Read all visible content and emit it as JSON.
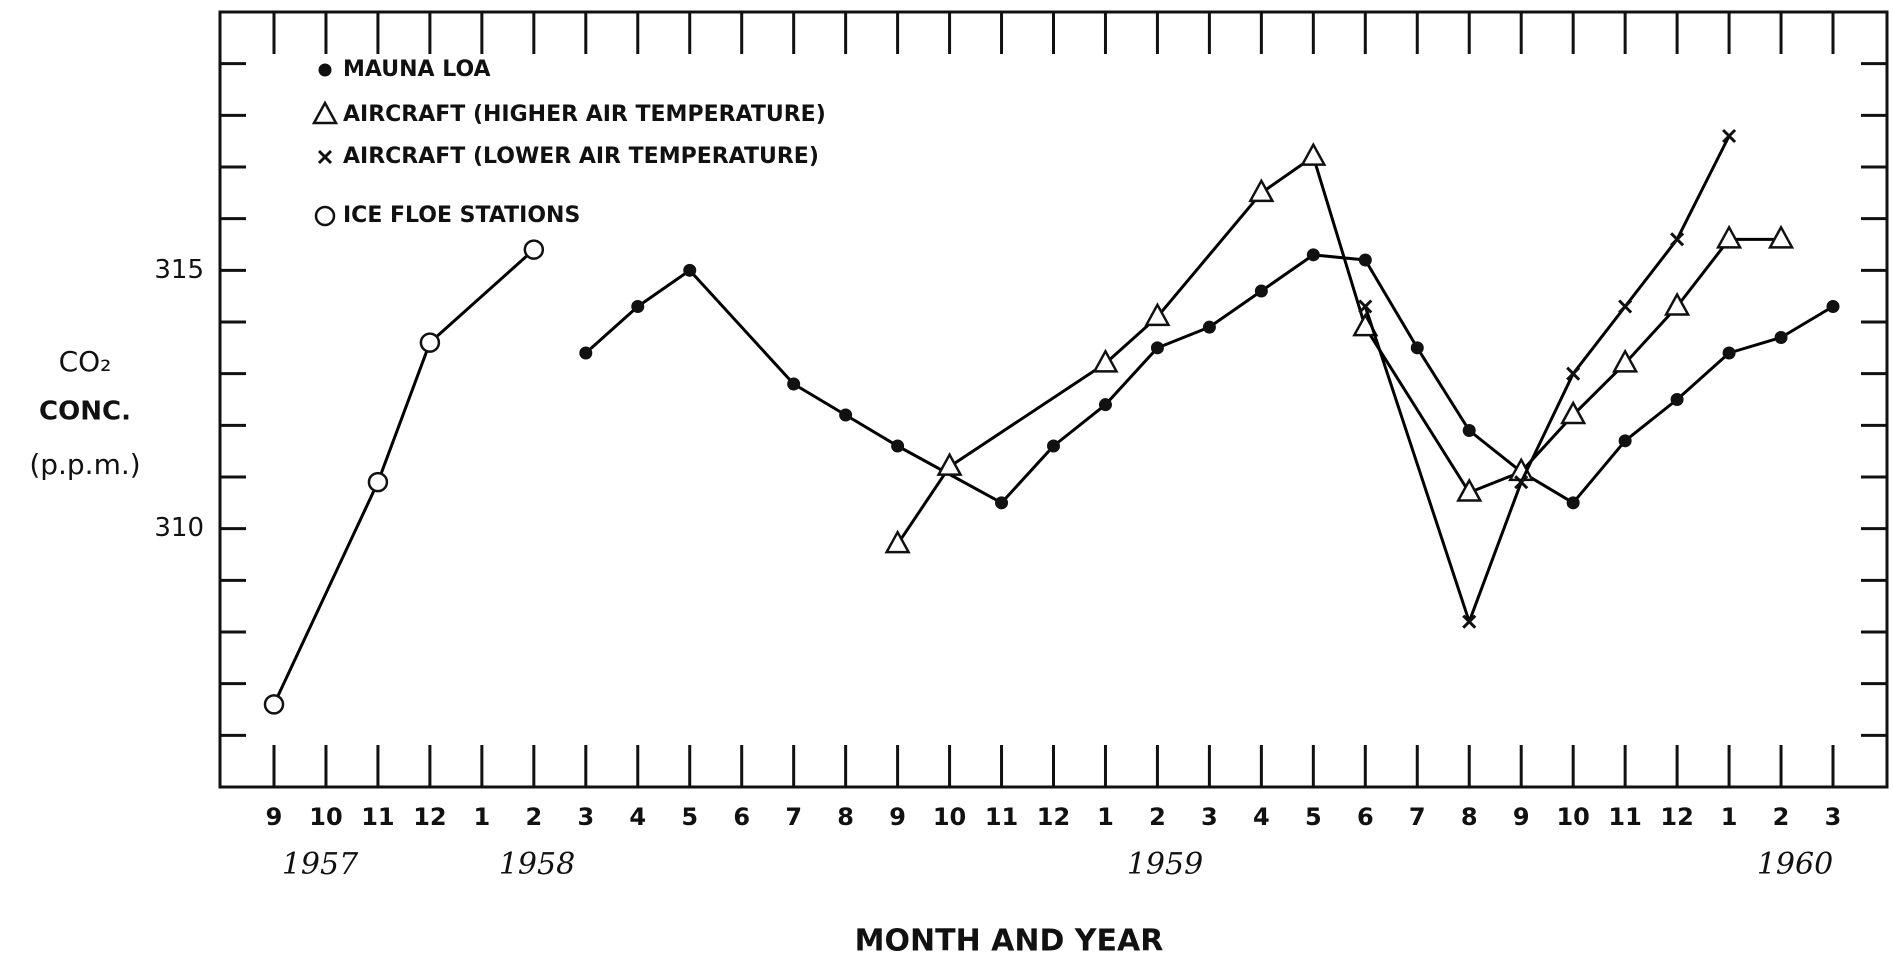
{
  "chart_data": {
    "type": "line",
    "x_label": "MONTH AND YEAR",
    "y_label": [
      "CO₂",
      "CONC.",
      "(p.p.m.)"
    ],
    "categories": [
      "9",
      "10",
      "11",
      "12",
      "1",
      "2",
      "3",
      "4",
      "5",
      "6",
      "7",
      "8",
      "9",
      "10",
      "11",
      "12",
      "1",
      "2",
      "3",
      "4",
      "5",
      "6",
      "7",
      "8",
      "9",
      "10",
      "11",
      "12",
      "1",
      "2",
      "3"
    ],
    "years": [
      "1957",
      "1958",
      "1959",
      "1960"
    ],
    "ylim": [
      305,
      320
    ],
    "yticks": [
      310,
      315
    ],
    "yticks_minor": [
      306,
      307,
      308,
      309,
      311,
      312,
      313,
      314,
      316,
      317,
      318,
      319
    ],
    "series": [
      {
        "name": "MAUNA LOA",
        "marker": "dot",
        "color": "#000000",
        "values": [
          null,
          null,
          null,
          null,
          null,
          null,
          313.4,
          314.3,
          315.0,
          null,
          312.8,
          312.2,
          311.6,
          null,
          310.5,
          311.6,
          312.4,
          313.5,
          313.9,
          314.6,
          315.3,
          315.2,
          313.5,
          311.9,
          311.1,
          310.5,
          311.7,
          312.5,
          313.4,
          313.7,
          314.3
        ]
      },
      {
        "name": "AIRCRAFT (HIGHER AIR TEMPERATURE)",
        "marker": "triangle",
        "color": "#000000",
        "values": [
          null,
          null,
          null,
          null,
          null,
          null,
          null,
          null,
          null,
          null,
          null,
          null,
          309.7,
          311.2,
          null,
          null,
          313.2,
          314.1,
          null,
          316.5,
          317.2,
          313.9,
          null,
          310.7,
          311.1,
          312.2,
          313.2,
          314.3,
          315.6,
          315.6,
          null
        ]
      },
      {
        "name": "AIRCRAFT (LOWER AIR TEMPERATURE)",
        "marker": "cross",
        "color": "#000000",
        "values": [
          null,
          null,
          null,
          null,
          null,
          null,
          null,
          null,
          null,
          null,
          null,
          null,
          null,
          null,
          null,
          null,
          null,
          null,
          null,
          null,
          null,
          314.3,
          null,
          308.2,
          310.9,
          313.0,
          314.3,
          315.6,
          317.6,
          null,
          null
        ]
      },
      {
        "name": "ICE FLOE STATIONS",
        "marker": "circle",
        "color": "#000000",
        "values": [
          306.6,
          null,
          310.9,
          313.6,
          null,
          315.4,
          null,
          null,
          null,
          null,
          null,
          null,
          null,
          null,
          null,
          null,
          null,
          null,
          null,
          null,
          null,
          null,
          null,
          null,
          null,
          null,
          null,
          null,
          null,
          null,
          null
        ]
      }
    ]
  }
}
